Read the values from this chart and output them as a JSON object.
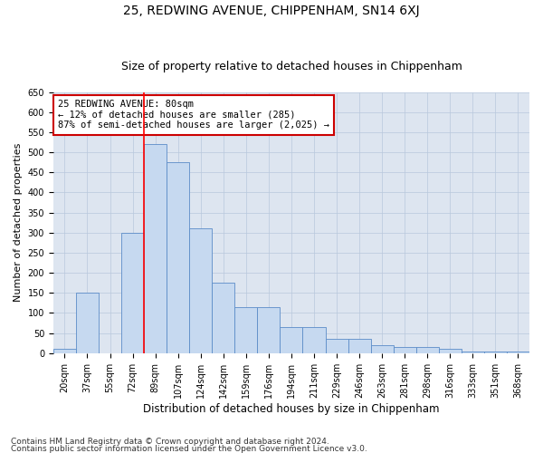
{
  "title1": "25, REDWING AVENUE, CHIPPENHAM, SN14 6XJ",
  "title2": "Size of property relative to detached houses in Chippenham",
  "xlabel": "Distribution of detached houses by size in Chippenham",
  "ylabel": "Number of detached properties",
  "categories": [
    "20sqm",
    "37sqm",
    "55sqm",
    "72sqm",
    "89sqm",
    "107sqm",
    "124sqm",
    "142sqm",
    "159sqm",
    "176sqm",
    "194sqm",
    "211sqm",
    "229sqm",
    "246sqm",
    "263sqm",
    "281sqm",
    "298sqm",
    "316sqm",
    "333sqm",
    "351sqm",
    "368sqm"
  ],
  "values": [
    10,
    150,
    0,
    300,
    520,
    475,
    310,
    175,
    115,
    115,
    65,
    65,
    35,
    35,
    20,
    15,
    15,
    10,
    5,
    5,
    5
  ],
  "bar_color": "#c6d9f0",
  "bar_edge_color": "#5b8cc8",
  "red_line_index": 3.5,
  "annotation_text": "25 REDWING AVENUE: 80sqm\n← 12% of detached houses are smaller (285)\n87% of semi-detached houses are larger (2,025) →",
  "annotation_box_color": "#ffffff",
  "annotation_box_edge_color": "#cc0000",
  "ylim": [
    0,
    650
  ],
  "yticks": [
    0,
    50,
    100,
    150,
    200,
    250,
    300,
    350,
    400,
    450,
    500,
    550,
    600,
    650
  ],
  "plot_bg_color": "#dde5f0",
  "background_color": "#ffffff",
  "grid_color": "#b8c8dc",
  "footer1": "Contains HM Land Registry data © Crown copyright and database right 2024.",
  "footer2": "Contains public sector information licensed under the Open Government Licence v3.0.",
  "title1_fontsize": 10,
  "title2_fontsize": 9,
  "xlabel_fontsize": 8.5,
  "ylabel_fontsize": 8,
  "tick_fontsize": 7,
  "annotation_fontsize": 7.5,
  "footer_fontsize": 6.5
}
